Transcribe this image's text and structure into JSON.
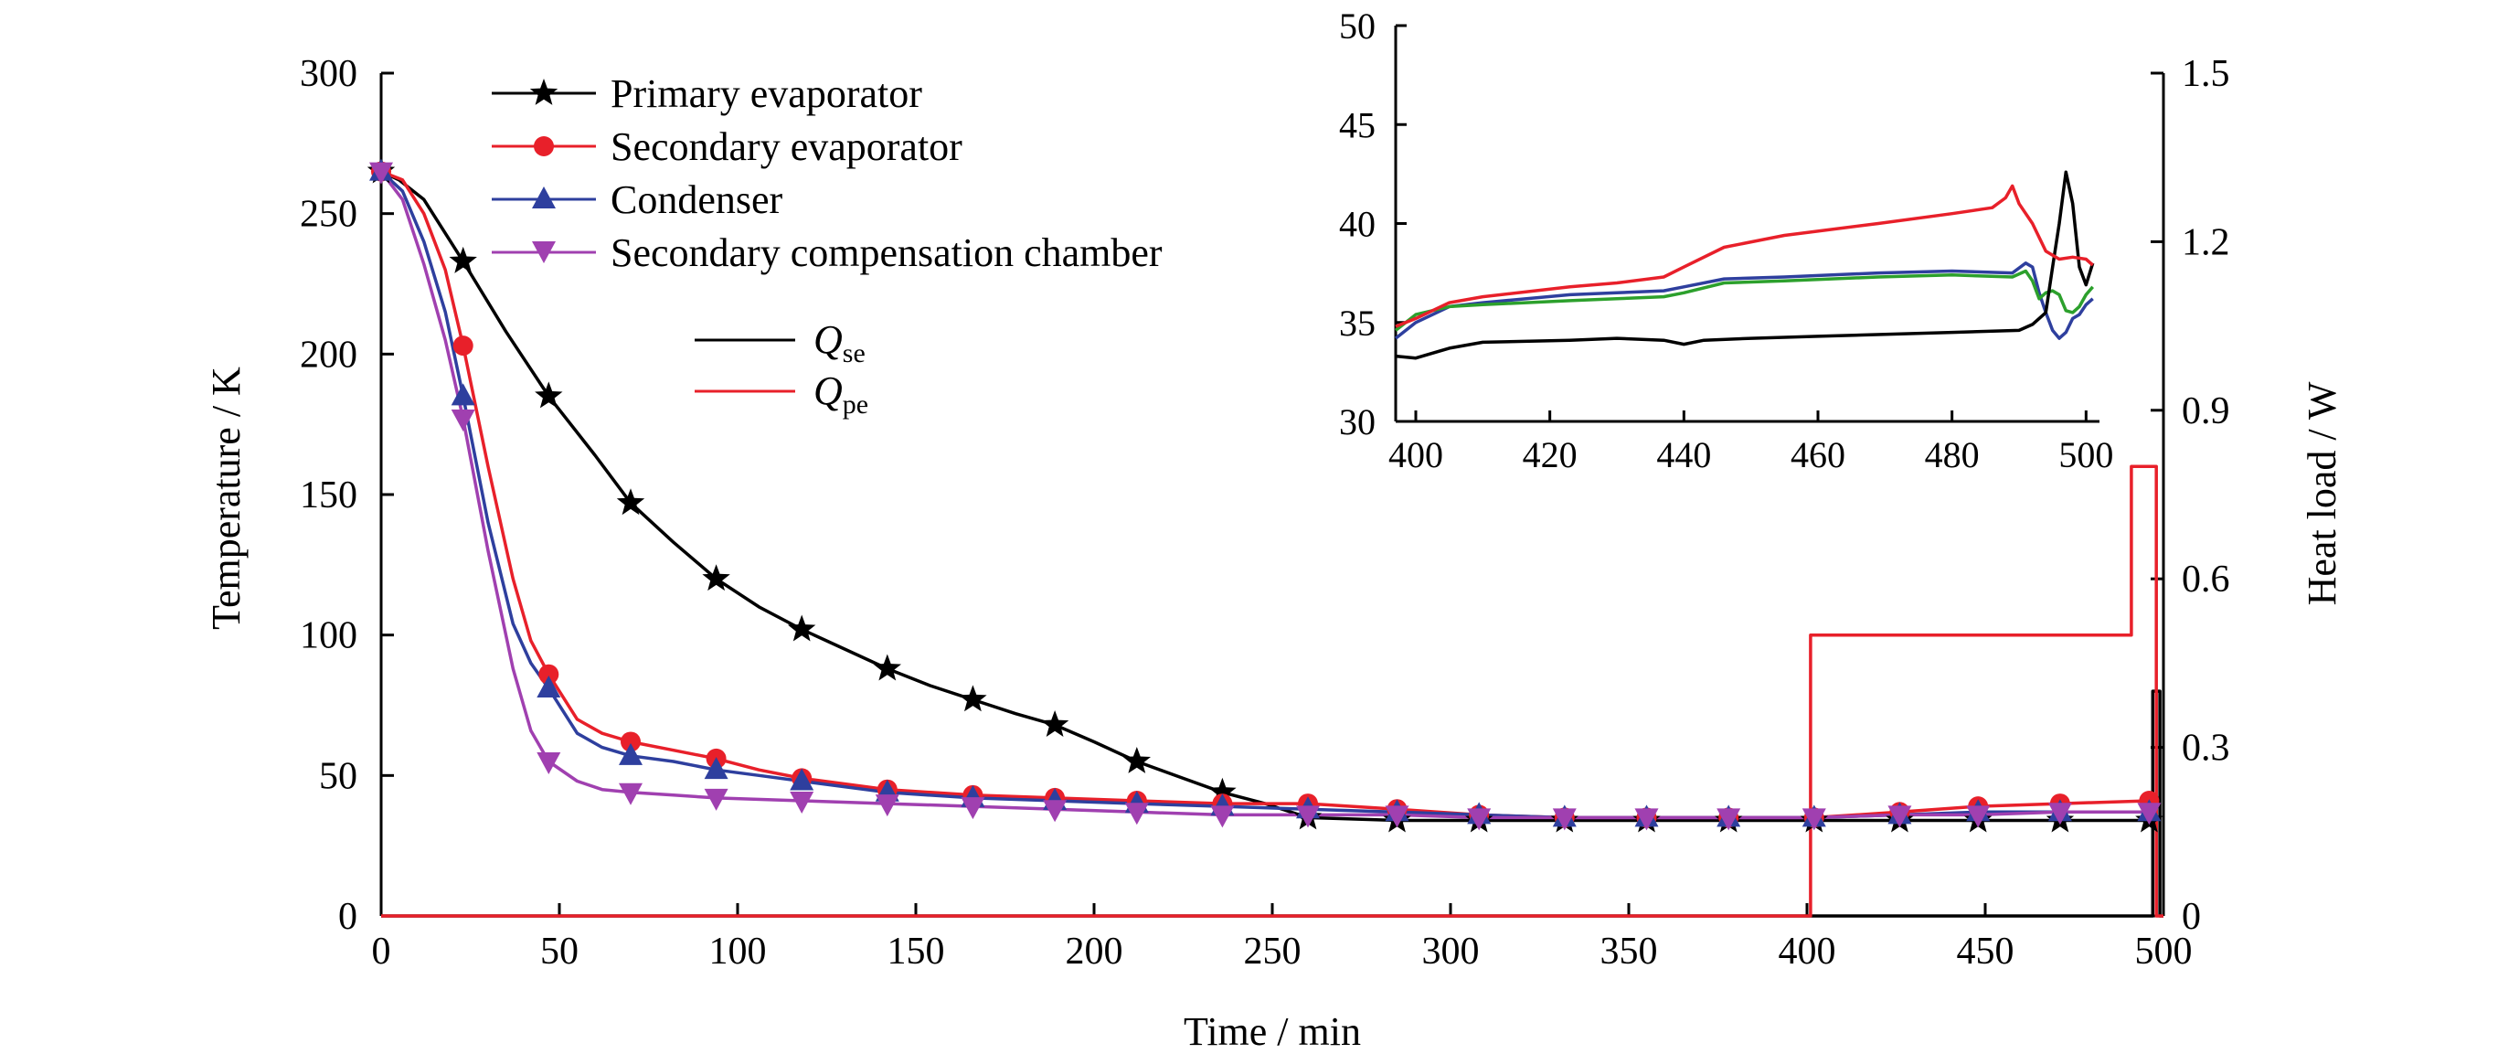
{
  "chart_data": [
    {
      "type": "line",
      "xlabel": "Time / min",
      "ylabel": "Temperature / K",
      "y2label": "Heat load / W",
      "xlim": [
        0,
        500
      ],
      "ylim": [
        0,
        300
      ],
      "y2lim": [
        0,
        1.5
      ],
      "xticks": [
        0,
        50,
        100,
        150,
        200,
        250,
        300,
        350,
        400,
        450,
        500
      ],
      "yticks": [
        0,
        50,
        100,
        150,
        200,
        250,
        300
      ],
      "y2ticks": [
        0,
        0.3,
        0.6,
        0.9,
        1.2,
        1.5
      ],
      "grid": false,
      "legend_placement": "top-left",
      "series": [
        {
          "name": "Primary evaporator",
          "axis": "left",
          "color": "#000000",
          "marker": "star",
          "x": [
            0,
            5,
            12,
            23,
            35,
            47,
            60,
            70,
            82,
            94,
            106,
            118,
            130,
            142,
            154,
            166,
            178,
            189,
            200,
            212,
            225,
            236,
            248,
            260,
            285,
            308,
            332,
            355,
            378,
            402,
            426,
            448,
            471,
            496
          ],
          "y": [
            265,
            262,
            255,
            233,
            208,
            185,
            164,
            147,
            133,
            120,
            110,
            102,
            95,
            88,
            82,
            77,
            72,
            68,
            62,
            55,
            49,
            44,
            40,
            35,
            34,
            34,
            34,
            34,
            34,
            34,
            34,
            34,
            34,
            34
          ],
          "markers_x": [
            0,
            23,
            47,
            70,
            94,
            118,
            142,
            166,
            189,
            212,
            236,
            260,
            285,
            308,
            332,
            355,
            378,
            402,
            426,
            448,
            471,
            496
          ],
          "markers_y": [
            265,
            233,
            185,
            147,
            120,
            102,
            88,
            77,
            68,
            55,
            44,
            35,
            34,
            34,
            34,
            34,
            34,
            34,
            34,
            34,
            34,
            34
          ]
        },
        {
          "name": "Secondary evaporator",
          "axis": "left",
          "color": "#e8202a",
          "marker": "circle",
          "x": [
            0,
            6,
            12,
            18,
            23,
            30,
            37,
            42,
            47,
            55,
            62,
            70,
            82,
            94,
            106,
            118,
            142,
            166,
            189,
            212,
            236,
            260,
            285,
            308,
            332,
            355,
            378,
            402,
            426,
            448,
            471,
            496
          ],
          "y": [
            265,
            262,
            250,
            230,
            203,
            160,
            120,
            98,
            86,
            70,
            65,
            62,
            59,
            56,
            52,
            49,
            45,
            43,
            42,
            41,
            40,
            40,
            38,
            36,
            35,
            35,
            35,
            35,
            37,
            39,
            40,
            41
          ],
          "markers_x": [
            0,
            23,
            47,
            70,
            94,
            118,
            142,
            166,
            189,
            212,
            236,
            260,
            285,
            308,
            332,
            355,
            378,
            402,
            426,
            448,
            471,
            496
          ],
          "markers_y": [
            265,
            203,
            86,
            62,
            56,
            49,
            45,
            43,
            42,
            41,
            40,
            40,
            38,
            36,
            35,
            35,
            35,
            35,
            37,
            39,
            40,
            41
          ]
        },
        {
          "name": "Condenser",
          "axis": "left",
          "color": "#2e3f9e",
          "marker": "triangle-up",
          "x": [
            0,
            6,
            12,
            18,
            23,
            30,
            37,
            42,
            47,
            55,
            62,
            70,
            82,
            94,
            106,
            118,
            142,
            166,
            189,
            212,
            236,
            260,
            285,
            308,
            332,
            355,
            378,
            402,
            426,
            448,
            471,
            496
          ],
          "y": [
            265,
            258,
            240,
            215,
            185,
            140,
            104,
            90,
            81,
            65,
            60,
            57,
            55,
            52,
            50,
            48,
            44,
            42,
            41,
            40,
            39,
            38,
            37,
            36,
            35,
            35,
            35,
            35,
            36,
            37,
            37,
            37
          ],
          "markers_x": [
            0,
            23,
            47,
            70,
            94,
            118,
            142,
            166,
            189,
            212,
            236,
            260,
            285,
            308,
            332,
            355,
            378,
            402,
            426,
            448,
            471,
            496
          ],
          "markers_y": [
            265,
            185,
            81,
            57,
            52,
            48,
            44,
            42,
            41,
            40,
            39,
            38,
            37,
            36,
            35,
            35,
            35,
            35,
            36,
            37,
            37,
            37
          ]
        },
        {
          "name": "Secondary compensation chamber",
          "axis": "left",
          "color": "#a040b0",
          "marker": "triangle-down",
          "x": [
            0,
            6,
            12,
            18,
            23,
            30,
            37,
            42,
            47,
            55,
            62,
            70,
            82,
            94,
            118,
            142,
            166,
            189,
            212,
            236,
            260,
            285,
            308,
            332,
            355,
            378,
            402,
            426,
            448,
            471,
            496
          ],
          "y": [
            265,
            255,
            232,
            205,
            177,
            130,
            88,
            66,
            55,
            48,
            45,
            44,
            43,
            42,
            41,
            40,
            39,
            38,
            37,
            36,
            36,
            36,
            35,
            35,
            35,
            35,
            35,
            36,
            36,
            37,
            37
          ],
          "markers_x": [
            0,
            23,
            47,
            70,
            94,
            118,
            142,
            166,
            189,
            212,
            236,
            260,
            285,
            308,
            332,
            355,
            378,
            402,
            426,
            448,
            471,
            496
          ],
          "markers_y": [
            265,
            177,
            55,
            44,
            42,
            41,
            40,
            39,
            38,
            37,
            36,
            36,
            36,
            35,
            35,
            35,
            35,
            35,
            36,
            36,
            37,
            37
          ]
        },
        {
          "name": "Q_se",
          "label_main": "Q",
          "label_sub": "se",
          "axis": "right",
          "color": "#000000",
          "marker": "none",
          "x": [
            0,
            497,
            497,
            499,
            499,
            500
          ],
          "y": [
            0,
            0,
            0.4,
            0.4,
            0,
            0
          ]
        },
        {
          "name": "Q_pe",
          "label_main": "Q",
          "label_sub": "pe",
          "axis": "right",
          "color": "#e8202a",
          "marker": "none",
          "x": [
            0,
            401,
            401,
            491,
            491,
            498,
            498,
            500
          ],
          "y": [
            0,
            0,
            0.5,
            0.5,
            0.8,
            0.8,
            0,
            0
          ]
        }
      ]
    },
    {
      "type": "line",
      "role": "inset",
      "xlim": [
        397,
        502
      ],
      "ylim": [
        30,
        50
      ],
      "xticks": [
        400,
        420,
        440,
        460,
        480,
        500
      ],
      "yticks": [
        30,
        35,
        40,
        45,
        50
      ],
      "grid": false,
      "series": [
        {
          "name": "Primary evaporator",
          "color": "#000000",
          "x": [
            397,
            400,
            405,
            410,
            423,
            430,
            437,
            440,
            443,
            450,
            460,
            470,
            480,
            490,
            492,
            494,
            495,
            496,
            497,
            498,
            499,
            500,
            501
          ],
          "y": [
            33.3,
            33.2,
            33.7,
            34.0,
            34.1,
            34.2,
            34.1,
            33.9,
            34.1,
            34.2,
            34.3,
            34.4,
            34.5,
            34.6,
            34.9,
            35.5,
            37.8,
            40.0,
            42.6,
            41.0,
            37.8,
            36.9,
            38.0
          ]
        },
        {
          "name": "Secondary evaporator",
          "color": "#e8202a",
          "x": [
            397,
            400,
            405,
            410,
            423,
            430,
            437,
            440,
            446,
            455,
            469,
            480,
            486,
            488,
            489,
            490,
            492,
            494,
            496,
            498,
            500,
            501
          ],
          "y": [
            34.8,
            35.2,
            36.0,
            36.3,
            36.8,
            37.0,
            37.3,
            37.8,
            38.8,
            39.4,
            40.0,
            40.5,
            40.8,
            41.3,
            41.9,
            41.0,
            40.0,
            38.6,
            38.2,
            38.3,
            38.2,
            37.9
          ]
        },
        {
          "name": "Condenser",
          "color": "#2e3f9e",
          "x": [
            397,
            400,
            405,
            410,
            423,
            430,
            437,
            440,
            446,
            455,
            469,
            480,
            489,
            491,
            492,
            493,
            494,
            495,
            496,
            497,
            498,
            499,
            500,
            501
          ],
          "y": [
            34.2,
            35.0,
            35.8,
            36.0,
            36.4,
            36.5,
            36.6,
            36.8,
            37.2,
            37.3,
            37.5,
            37.6,
            37.5,
            38.0,
            37.8,
            36.5,
            35.5,
            34.6,
            34.2,
            34.5,
            35.2,
            35.4,
            35.9,
            36.2
          ]
        },
        {
          "name": "Secondary compensation chamber",
          "color": "#2ca02c",
          "x": [
            397,
            400,
            405,
            410,
            423,
            430,
            437,
            440,
            446,
            455,
            469,
            480,
            489,
            491,
            492,
            493,
            494,
            495,
            496,
            497,
            498,
            499,
            500,
            501
          ],
          "y": [
            34.6,
            35.4,
            35.8,
            35.9,
            36.1,
            36.2,
            36.3,
            36.5,
            37.0,
            37.1,
            37.3,
            37.4,
            37.3,
            37.6,
            37.1,
            36.2,
            36.5,
            36.6,
            36.4,
            35.6,
            35.5,
            35.8,
            36.4,
            36.8
          ]
        }
      ]
    }
  ]
}
